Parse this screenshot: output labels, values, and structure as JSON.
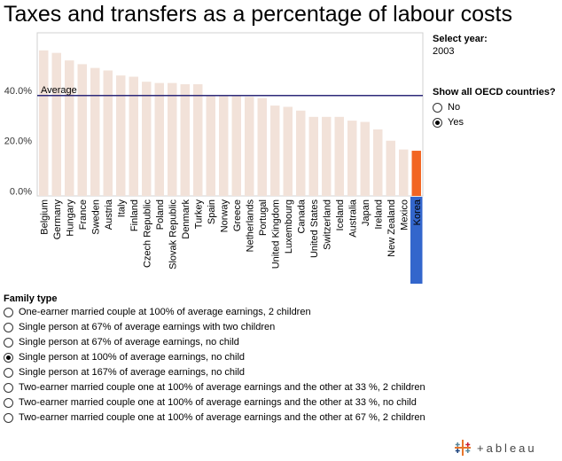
{
  "title": "Taxes and transfers as a percentage of labour costs",
  "controls": {
    "year_heading": "Select year:",
    "year_value": "2003",
    "oecd_heading": "Show all OECD countries?",
    "oecd_options": [
      {
        "label": "No",
        "selected": false
      },
      {
        "label": "Yes",
        "selected": true
      }
    ]
  },
  "family": {
    "heading": "Family type",
    "options": [
      {
        "label": "One-earner married couple at 100% of average earnings, 2 children",
        "selected": false
      },
      {
        "label": "Single person at 67% of average earnings with two children",
        "selected": false
      },
      {
        "label": "Single person at 67% of average earnings, no child",
        "selected": false
      },
      {
        "label": "Single person at 100% of average earnings, no child",
        "selected": true
      },
      {
        "label": "Single person at 167% of average earnings, no child",
        "selected": false
      },
      {
        "label": "Two-earner married couple one at 100% of average earnings and the other at 33 %, 2 children",
        "selected": false
      },
      {
        "label": "Two-earner married couple one at 100% of average earnings and the other at 33 %, no  child",
        "selected": false
      },
      {
        "label": "Two-earner married couple one at 100% of average earnings and the other at 67 %, 2 children",
        "selected": false
      }
    ]
  },
  "logo_text": "+ableau",
  "colors": {
    "bar": "#f2e2d9",
    "highlight_bar": "#f26522",
    "highlight_label_bg": "#3366cc",
    "average_line": "#2e2a7a"
  },
  "chart_data": {
    "type": "bar",
    "title": "Taxes and transfers as a percentage of labour costs",
    "xlabel": "",
    "ylabel": "",
    "ylim": [
      -2,
      63
    ],
    "yticks": [
      "0.0%",
      "20.0%",
      "40.0%"
    ],
    "ytick_values": [
      0,
      20,
      40
    ],
    "grid": false,
    "average": {
      "label": "Average",
      "value": 38.0
    },
    "highlight": "Korea",
    "categories": [
      "Belgium",
      "Germany",
      "Hungary",
      "France",
      "Sweden",
      "Austria",
      "Italy",
      "Finland",
      "Czech Republic",
      "Poland",
      "Slovak Republic",
      "Denmark",
      "Turkey",
      "Spain",
      "Norway",
      "Greece",
      "Netherlands",
      "Portugal",
      "United Kingdom",
      "Luxembourg",
      "Canada",
      "United States",
      "Switzerland",
      "Iceland",
      "Australia",
      "Japan",
      "Ireland",
      "New Zealand",
      "Mexico",
      "Korea"
    ],
    "values": [
      56.0,
      55.0,
      52.0,
      50.5,
      49.0,
      48.0,
      46.0,
      45.5,
      43.5,
      43.0,
      43.0,
      42.5,
      42.5,
      38.0,
      38.0,
      38.0,
      37.5,
      37.0,
      34.0,
      33.5,
      32.0,
      29.5,
      29.5,
      29.5,
      28.0,
      27.5,
      24.5,
      20.0,
      16.5,
      16.0
    ]
  }
}
